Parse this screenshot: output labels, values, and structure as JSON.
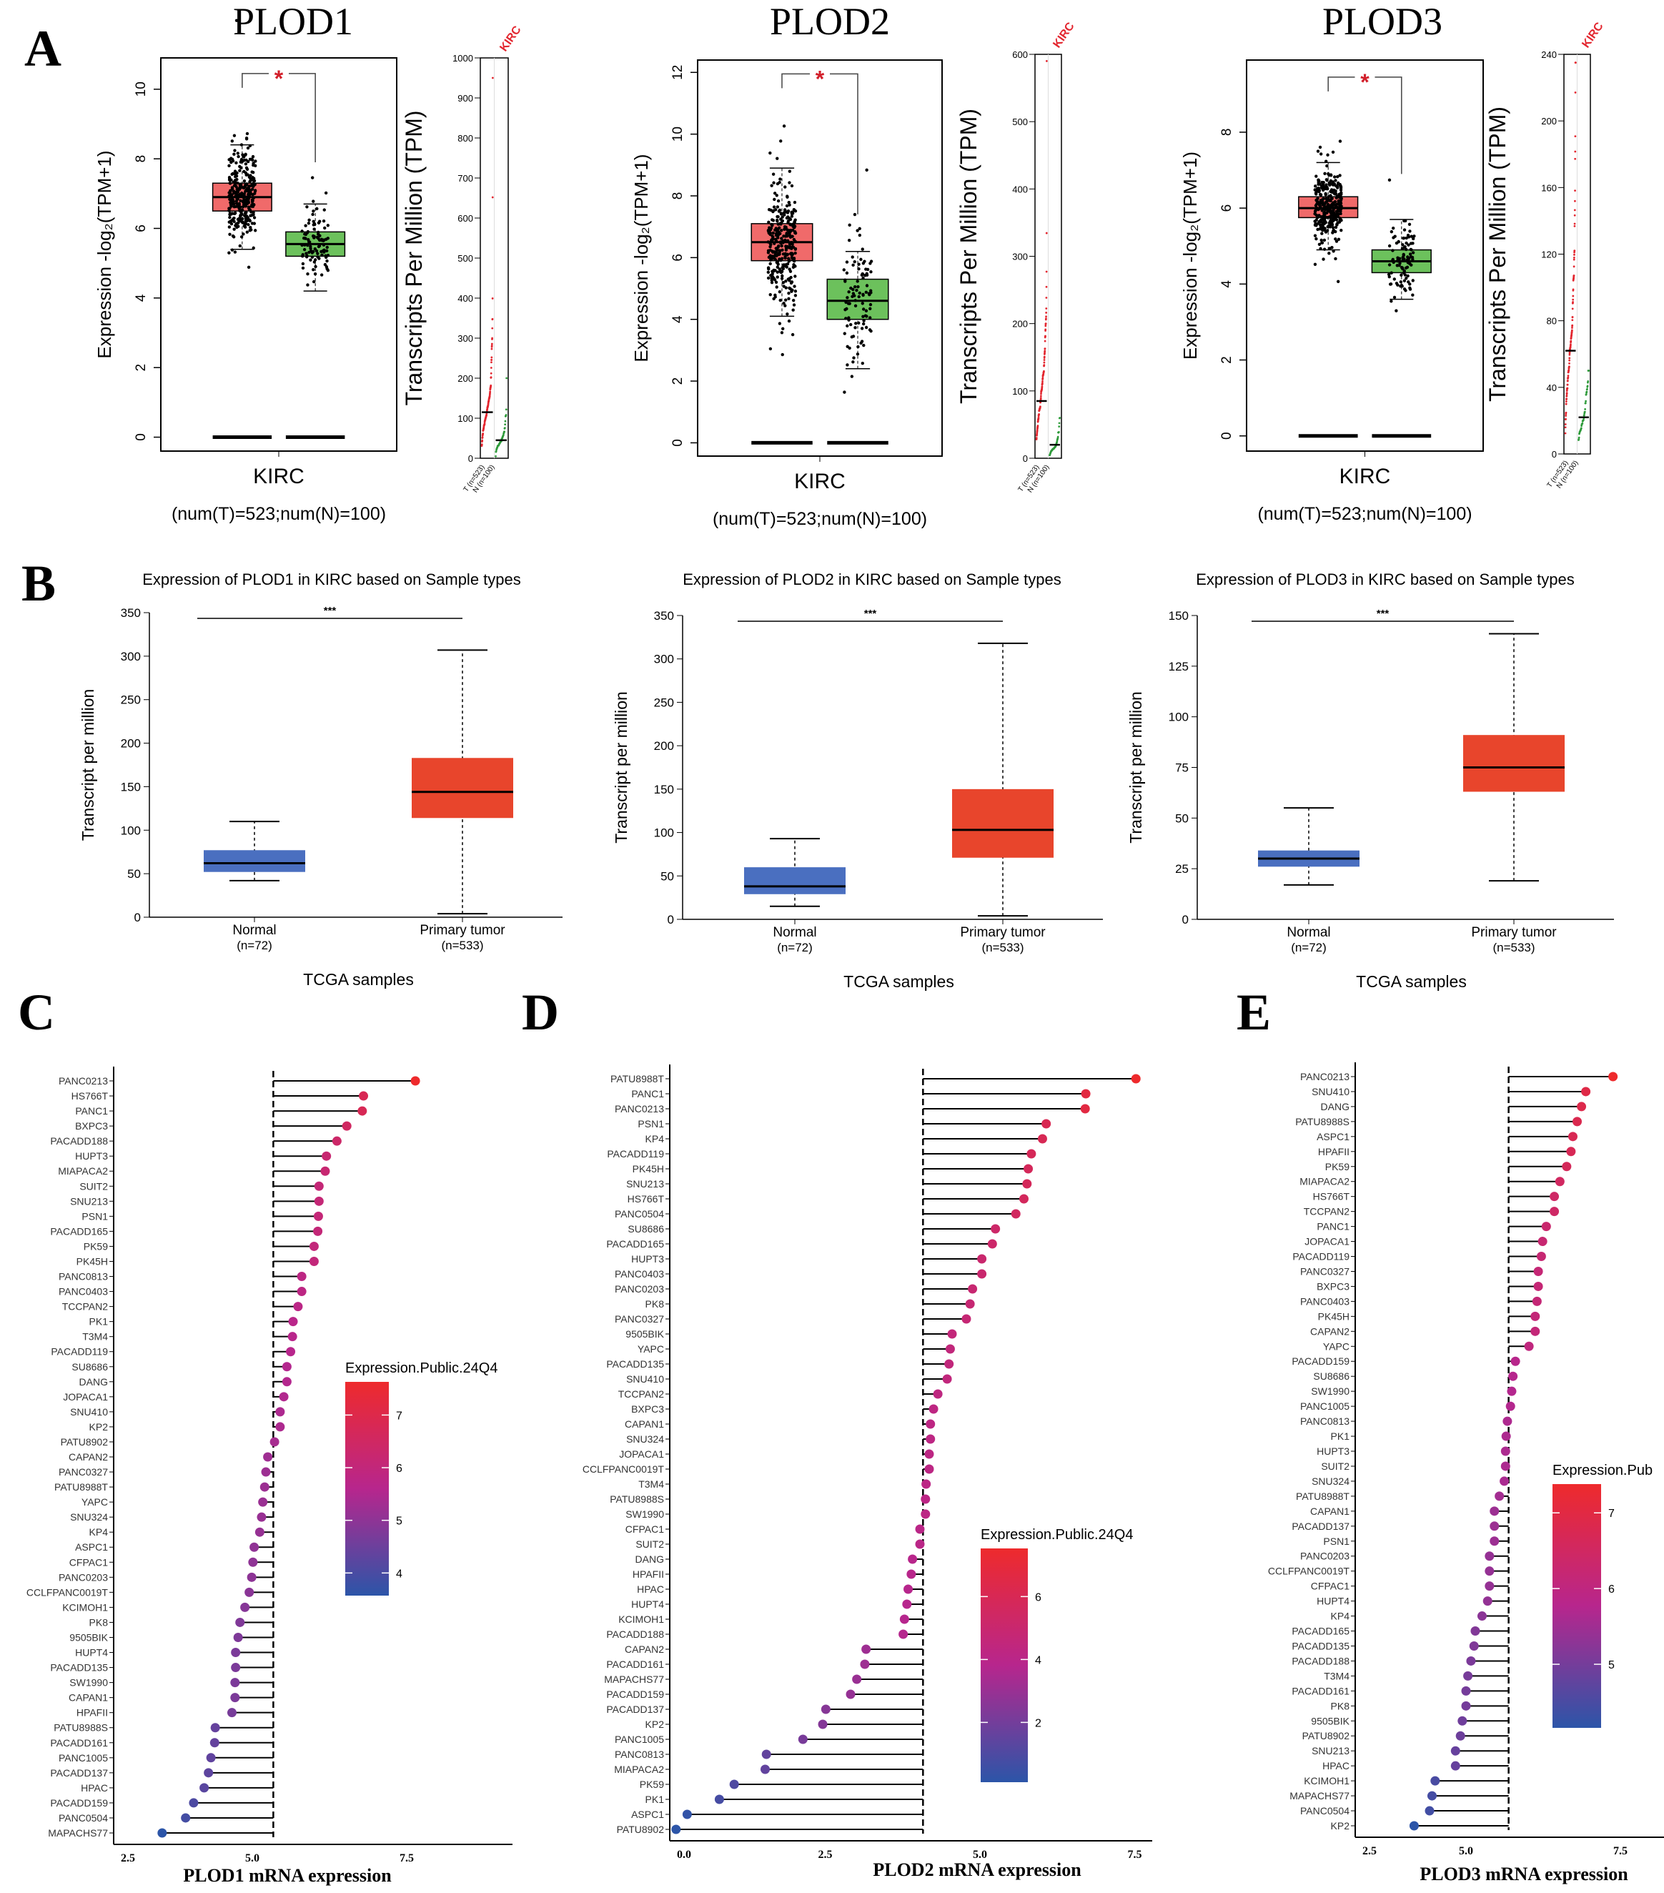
{
  "panel_labels": [
    "A",
    "B",
    "C",
    "D",
    "E"
  ],
  "chart_data": [
    {
      "type": "box",
      "panel": "A",
      "gene": "PLOD1",
      "ylabel": "Expression -log₂(TPM+1)",
      "ylim": [
        -0.4,
        10.9
      ],
      "yticks": [
        "0",
        "2",
        "4",
        "6",
        "8",
        "10"
      ],
      "xlabel": "KIRC",
      "counts_label": "(num(T)=523;num(N)=100)",
      "significance": "*",
      "tumor": {
        "n": 523,
        "whisker_low": 5.4,
        "q1": 6.5,
        "median": 6.9,
        "q3": 7.3,
        "whisker_high": 8.4,
        "color": "#f06a6a"
      },
      "normal": {
        "n": 100,
        "whisker_low": 4.2,
        "q1": 5.2,
        "median": 5.55,
        "q3": 5.9,
        "whisker_high": 6.7,
        "color": "#6cc15c"
      },
      "tpm": {
        "ylabel": "Transcripts Per Million (TPM)",
        "ymax": 1000,
        "yticks": [
          "0",
          "100",
          "200",
          "300",
          "400",
          "500",
          "600",
          "700",
          "800",
          "900",
          "1000"
        ],
        "tumor_median": 115,
        "normal_median": 45,
        "tumor_max": 950,
        "normal_max": 200,
        "cancer": "KIRC",
        "groups": [
          "T (n=523)",
          "N (n=100)"
        ]
      }
    },
    {
      "type": "box",
      "panel": "A",
      "gene": "PLOD2",
      "ylabel": "Expression -log₂(TPM+1)",
      "ylim": [
        -0.43,
        12.4
      ],
      "yticks": [
        "0",
        "2",
        "4",
        "6",
        "8",
        "10",
        "12"
      ],
      "xlabel": "KIRC",
      "counts_label": "(num(T)=523;num(N)=100)",
      "significance": "*",
      "tumor": {
        "n": 523,
        "whisker_low": 4.1,
        "q1": 5.9,
        "median": 6.5,
        "q3": 7.1,
        "whisker_high": 8.9,
        "color": "#f06a6a"
      },
      "normal": {
        "n": 100,
        "whisker_low": 2.4,
        "q1": 4.0,
        "median": 4.6,
        "q3": 5.3,
        "whisker_high": 6.2,
        "color": "#6cc15c"
      },
      "tpm": {
        "ylabel": "Transcripts Per Million (TPM)",
        "ymax": 600,
        "yticks": [
          "0",
          "100",
          "200",
          "300",
          "400",
          "500",
          "600"
        ],
        "tumor_median": 85,
        "normal_median": 20,
        "tumor_max": 590,
        "normal_max": 60,
        "cancer": "KIRC",
        "groups": [
          "T (n=523)",
          "N (n=100)"
        ]
      }
    },
    {
      "type": "box",
      "panel": "A",
      "gene": "PLOD3",
      "ylabel": "Expression -log₂(TPM+1)",
      "ylim": [
        -0.4,
        9.9
      ],
      "yticks": [
        "0",
        "2",
        "4",
        "6",
        "8"
      ],
      "xlabel": "KIRC",
      "counts_label": "(num(T)=523;num(N)=100)",
      "significance": "*",
      "tumor": {
        "n": 523,
        "whisker_low": 4.9,
        "q1": 5.75,
        "median": 6.0,
        "q3": 6.3,
        "whisker_high": 7.2,
        "color": "#f06a6a"
      },
      "normal": {
        "n": 100,
        "whisker_low": 3.6,
        "q1": 4.3,
        "median": 4.6,
        "q3": 4.9,
        "whisker_high": 5.7,
        "color": "#6cc15c"
      },
      "tpm": {
        "ylabel": "Transcripts Per Million (TPM)",
        "ymax": 240,
        "yticks": [
          "0",
          "40",
          "80",
          "120",
          "160",
          "200",
          "240"
        ],
        "tumor_median": 62,
        "normal_median": 22,
        "tumor_max": 235,
        "normal_max": 50,
        "cancer": "KIRC",
        "groups": [
          "T (n=523)",
          "N (n=100)"
        ]
      }
    },
    {
      "type": "box",
      "panel": "B",
      "title": "Expression of PLOD1 in KIRC based on Sample types",
      "ylabel": "Transcript per million",
      "xlabel": "TCGA samples",
      "ylim": [
        0,
        350
      ],
      "yticks": [
        "0",
        "50",
        "100",
        "150",
        "200",
        "250",
        "300",
        "350"
      ],
      "significance": "***",
      "categories": [
        {
          "name": "Normal",
          "n_label": "(n=72)",
          "min": 42,
          "q1": 52,
          "median": 62,
          "q3": 77,
          "max": 110,
          "color": "#4a6fc0"
        },
        {
          "name": "Primary tumor",
          "n_label": "(n=533)",
          "min": 4,
          "q1": 114,
          "median": 144,
          "q3": 183,
          "max": 307,
          "color": "#e8452c"
        }
      ]
    },
    {
      "type": "box",
      "panel": "B",
      "title": "Expression of PLOD2 in KIRC based on Sample types",
      "ylabel": "Transcript per million",
      "xlabel": "TCGA samples",
      "ylim": [
        0,
        350
      ],
      "yticks": [
        "0",
        "50",
        "100",
        "150",
        "200",
        "250",
        "300",
        "350"
      ],
      "significance": "***",
      "categories": [
        {
          "name": "Normal",
          "n_label": "(n=72)",
          "min": 15,
          "q1": 29,
          "median": 38,
          "q3": 60,
          "max": 93,
          "color": "#4a6fc0"
        },
        {
          "name": "Primary tumor",
          "n_label": "(n=533)",
          "min": 4,
          "q1": 71,
          "median": 103,
          "q3": 150,
          "max": 318,
          "color": "#e8452c"
        }
      ]
    },
    {
      "type": "box",
      "panel": "B",
      "title": "Expression of PLOD3 in KIRC based on Sample types",
      "ylabel": "Transcript per million",
      "xlabel": "TCGA samples",
      "ylim": [
        0,
        150
      ],
      "yticks": [
        "0",
        "25",
        "50",
        "75",
        "100",
        "125",
        "150"
      ],
      "significance": "***",
      "categories": [
        {
          "name": "Normal",
          "n_label": "(n=72)",
          "min": 17,
          "q1": 26,
          "median": 30,
          "q3": 34,
          "max": 55,
          "color": "#4a6fc0"
        },
        {
          "name": "Primary tumor",
          "n_label": "(n=533)",
          "min": 19,
          "q1": 63,
          "median": 75,
          "q3": 91,
          "max": 141,
          "color": "#e8452c"
        }
      ]
    },
    {
      "type": "lollipop",
      "panel": "C",
      "xlabel": "PLOD1 mRNA expression",
      "xticks": [
        "2.5",
        "5.0",
        "7.5"
      ],
      "reference": 5.34,
      "legend": {
        "title": "Expression.Public.24Q4",
        "range": [
          3.57,
          7.63
        ],
        "ticks": [
          "4",
          "5",
          "6",
          "7"
        ]
      },
      "cell_lines": [
        "PANC0213",
        "HS766T",
        "PANC1",
        "BXPC3",
        "PACADD188",
        "HUPT3",
        "MIAPACA2",
        "SUIT2",
        "SNU213",
        "PSN1",
        "PACADD165",
        "PK59",
        "PK45H",
        "PANC0813",
        "PANC0403",
        "TCCPAN2",
        "PK1",
        "T3M4",
        "PACADD119",
        "SU8686",
        "DANG",
        "JOPACA1",
        "SNU410",
        "KP2",
        "PATU8902",
        "CAPAN2",
        "PANC0327",
        "PATU8988T",
        "YAPC",
        "SNU324",
        "KP4",
        "ASPC1",
        "CFPAC1",
        "PANC0203",
        "CCLFPANC0019T",
        "KCIMOH1",
        "PK8",
        "9505BIK",
        "HUPT4",
        "PACADD135",
        "SW1990",
        "CAPAN1",
        "HPAFII",
        "PATU8988S",
        "PACADD161",
        "PANC1005",
        "PACADD137",
        "HPAC",
        "PACADD159",
        "PANC0504",
        "MAPACHS77"
      ],
      "values": [
        7.64,
        6.8,
        6.78,
        6.53,
        6.37,
        6.2,
        6.18,
        6.08,
        6.08,
        6.07,
        6.06,
        6.0,
        6.0,
        5.8,
        5.8,
        5.74,
        5.66,
        5.65,
        5.62,
        5.56,
        5.56,
        5.51,
        5.45,
        5.45,
        5.36,
        5.25,
        5.22,
        5.2,
        5.17,
        5.15,
        5.12,
        5.03,
        5.01,
        4.99,
        4.95,
        4.88,
        4.8,
        4.77,
        4.73,
        4.73,
        4.72,
        4.72,
        4.67,
        4.4,
        4.39,
        4.33,
        4.29,
        4.22,
        4.05,
        3.92,
        3.54
      ]
    },
    {
      "type": "lollipop",
      "panel": "D",
      "xlabel": "PLOD2 mRNA expression",
      "xticks": [
        "0.0",
        "2.5",
        "5.0",
        "7.5"
      ],
      "reference": 4.08,
      "legend": {
        "title": "Expression.Public.24Q4",
        "range": [
          0.1,
          7.53
        ],
        "ticks": [
          "2",
          "4",
          "6"
        ]
      },
      "cell_lines": [
        "PATU8988T",
        "PANC1",
        "PANC0213",
        "PSN1",
        "KP4",
        "PACADD119",
        "PK45H",
        "SNU213",
        "HS766T",
        "PANC0504",
        "SU8686",
        "PACADD165",
        "HUPT3",
        "PANC0403",
        "PANC0203",
        "PK8",
        "PANC0327",
        "9505BIK",
        "YAPC",
        "PACADD135",
        "SNU410",
        "TCCPAN2",
        "BXPC3",
        "CAPAN1",
        "SNU324",
        "JOPACA1",
        "CCLFPANC0019T",
        "T3M4",
        "PATU8988S",
        "SW1990",
        "CFPAC1",
        "SUIT2",
        "DANG",
        "HPAFII",
        "HPAC",
        "HUPT4",
        "KCIMOH1",
        "PACADD188",
        "CAPAN2",
        "PACADD161",
        "MAPACHS77",
        "PACADD159",
        "PACADD137",
        "KP2",
        "PANC1005",
        "PANC0813",
        "MIAPACA2",
        "PK59",
        "PK1",
        "ASPC1",
        "PATU8902"
      ],
      "values": [
        7.52,
        6.71,
        6.7,
        6.07,
        6.01,
        5.83,
        5.78,
        5.76,
        5.71,
        5.58,
        5.25,
        5.2,
        5.03,
        5.03,
        4.88,
        4.84,
        4.78,
        4.55,
        4.52,
        4.5,
        4.47,
        4.32,
        4.25,
        4.2,
        4.2,
        4.18,
        4.18,
        4.13,
        4.12,
        4.12,
        4.03,
        4.03,
        3.91,
        3.89,
        3.84,
        3.82,
        3.78,
        3.76,
        3.16,
        3.14,
        3.01,
        2.91,
        2.51,
        2.46,
        2.14,
        1.55,
        1.53,
        1.03,
        0.79,
        0.27,
        0.09
      ]
    },
    {
      "type": "lollipop",
      "panel": "E",
      "xlabel": "PLOD3 mRNA expression",
      "xticks": [
        "2.5",
        "5.0",
        "7.5"
      ],
      "reference": 5.69,
      "legend": {
        "title": "Expression.Pub",
        "range": [
          4.16,
          7.38
        ],
        "ticks": [
          "5",
          "6",
          "7"
        ]
      },
      "cell_lines": [
        "PANC0213",
        "SNU410",
        "DANG",
        "PATU8988S",
        "ASPC1",
        "HPAFII",
        "PK59",
        "MIAPACA2",
        "HS766T",
        "TCCPAN2",
        "PANC1",
        "JOPACA1",
        "PACADD119",
        "PANC0327",
        "BXPC3",
        "PANC0403",
        "PK45H",
        "CAPAN2",
        "YAPC",
        "PACADD159",
        "SU8686",
        "SW1990",
        "PANC1005",
        "PANC0813",
        "PK1",
        "HUPT3",
        "SUIT2",
        "SNU324",
        "PATU8988T",
        "CAPAN1",
        "PACADD137",
        "PSN1",
        "PANC0203",
        "CCLFPANC0019T",
        "CFPAC1",
        "HUPT4",
        "KP4",
        "PACADD165",
        "PACADD135",
        "PACADD188",
        "T3M4",
        "PACADD161",
        "PK8",
        "9505BIK",
        "PATU8902",
        "SNU213",
        "HPAC",
        "KCIMOH1",
        "MAPACHS77",
        "PANC0504",
        "KP2"
      ],
      "values": [
        7.38,
        6.94,
        6.87,
        6.8,
        6.73,
        6.7,
        6.63,
        6.52,
        6.43,
        6.43,
        6.3,
        6.24,
        6.22,
        6.17,
        6.17,
        6.15,
        6.12,
        6.12,
        6.02,
        5.8,
        5.76,
        5.74,
        5.72,
        5.67,
        5.65,
        5.64,
        5.64,
        5.62,
        5.54,
        5.46,
        5.46,
        5.46,
        5.38,
        5.38,
        5.38,
        5.35,
        5.26,
        5.15,
        5.13,
        5.08,
        5.03,
        5.0,
        5.0,
        4.94,
        4.91,
        4.83,
        4.83,
        4.5,
        4.45,
        4.41,
        4.16
      ]
    }
  ]
}
